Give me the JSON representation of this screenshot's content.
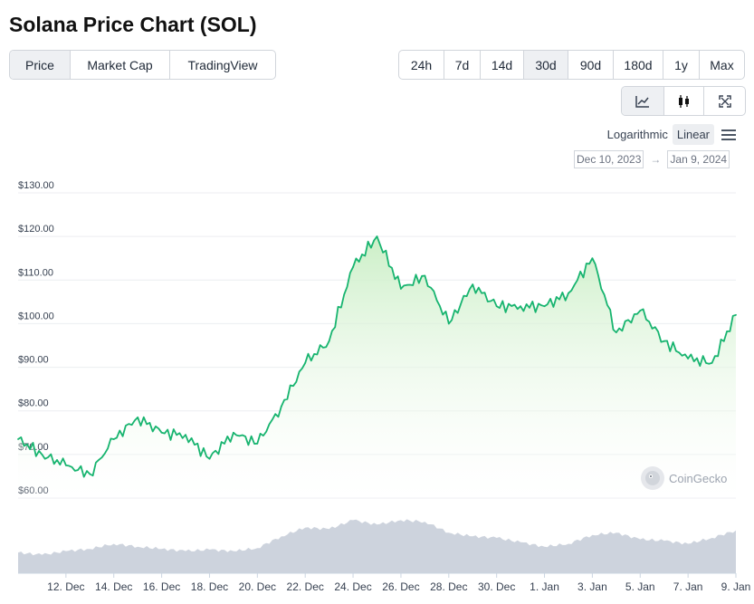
{
  "title": "Solana Price Chart (SOL)",
  "view_tabs": [
    "Price",
    "Market Cap",
    "TradingView"
  ],
  "range_tabs": [
    "24h",
    "7d",
    "14d",
    "30d",
    "90d",
    "180d",
    "1y",
    "Max"
  ],
  "scale": {
    "log_label": "Logarithmic",
    "linear_label": "Linear"
  },
  "date_range": {
    "start": "Dec 10, 2023",
    "arrow": "→",
    "end": "Jan 9, 2024"
  },
  "watermark": "CoinGecko",
  "colors": {
    "line": "#17b46f",
    "fill_top": "#c9eec4",
    "fill_bottom": "#ffffff",
    "volume": "#c4cbd7",
    "grid": "#eceef1"
  },
  "icons": {
    "line_chart": "line-chart-icon",
    "candlestick": "candlestick-icon",
    "fullscreen": "fullscreen-icon",
    "menu": "hamburger-menu-icon"
  },
  "chart_data": {
    "type": "area",
    "series": [
      {
        "x": [
          "2023-12-10",
          "2023-12-11",
          "2023-12-12",
          "2023-12-13",
          "2023-12-14",
          "2023-12-15",
          "2023-12-16",
          "2023-12-17",
          "2023-12-18",
          "2023-12-19",
          "2023-12-20",
          "2023-12-21",
          "2023-12-22",
          "2023-12-23",
          "2023-12-24",
          "2023-12-25",
          "2023-12-26",
          "2023-12-27",
          "2023-12-28",
          "2023-12-29",
          "2023-12-30",
          "2023-12-31",
          "2024-01-01",
          "2024-01-02",
          "2024-01-03",
          "2024-01-04",
          "2024-01-05",
          "2024-01-06",
          "2024-01-07",
          "2024-01-08",
          "2024-01-09"
        ],
        "y": [
          73.5,
          70,
          67.5,
          65.5,
          73.5,
          78.5,
          75,
          74.5,
          69,
          75,
          72.5,
          81,
          91,
          96,
          113,
          120,
          108,
          111,
          100,
          109,
          104,
          104,
          104,
          107,
          115,
          98,
          103,
          96,
          92,
          91,
          102
        ]
      }
    ],
    "volume_relative": [
      0.28,
      0.25,
      0.3,
      0.33,
      0.4,
      0.36,
      0.33,
      0.3,
      0.32,
      0.3,
      0.34,
      0.5,
      0.62,
      0.6,
      0.72,
      0.66,
      0.72,
      0.7,
      0.55,
      0.5,
      0.48,
      0.42,
      0.36,
      0.4,
      0.52,
      0.55,
      0.46,
      0.44,
      0.4,
      0.48,
      0.58
    ],
    "x_ticks": [
      "12. Dec",
      "14. Dec",
      "16. Dec",
      "18. Dec",
      "20. Dec",
      "22. Dec",
      "24. Dec",
      "26. Dec",
      "28. Dec",
      "30. Dec",
      "1. Jan",
      "3. Jan",
      "5. Jan",
      "7. Jan",
      "9. Jan"
    ],
    "y_ticks": [
      "$60.00",
      "$70.00",
      "$80.00",
      "$90.00",
      "$100.00",
      "$110.00",
      "$120.00",
      "$130.00"
    ],
    "ylim": [
      60,
      130
    ],
    "grid": true,
    "scale": "linear"
  }
}
